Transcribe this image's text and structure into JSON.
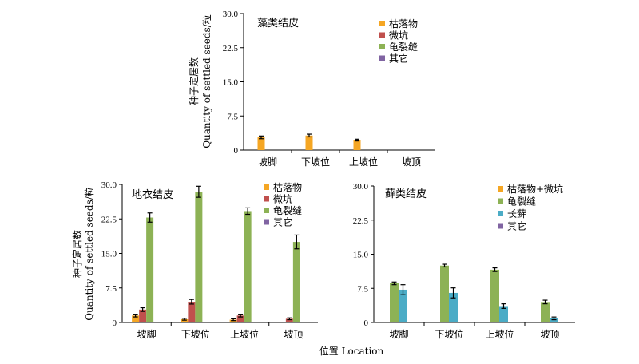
{
  "colors": {
    "枯落物": "#F5A623",
    "微坑": "#C0504D",
    "龟裂缝": "#8DB255",
    "其它": "#8064A2",
    "枯落物+微坑": "#F5A623",
    "长藓": "#4BACC6"
  },
  "y_label_cn": "种子定居数",
  "y_label_en": "Quantity of settled seeds/粒",
  "x_label": "位置  Location",
  "chart_data": [
    {
      "type": "bar",
      "title": "藻类结皮",
      "categories": [
        "坡脚",
        "下坡位",
        "上坡位",
        "坡顶"
      ],
      "ylim": [
        0,
        30
      ],
      "yticks": [
        "0",
        "7.5",
        "15.0",
        "22.5",
        "30.0"
      ],
      "legend": "top-right",
      "series": [
        {
          "name": "枯落物",
          "values": [
            2.8,
            3.2,
            2.2,
            0
          ],
          "errors": [
            0.3,
            0.3,
            0.2,
            0
          ]
        },
        {
          "name": "微坑",
          "values": [
            0,
            0,
            0,
            0
          ],
          "errors": [
            0,
            0,
            0,
            0
          ]
        },
        {
          "name": "龟裂缝",
          "values": [
            0,
            0,
            0,
            0
          ],
          "errors": [
            0,
            0,
            0,
            0
          ]
        },
        {
          "name": "其它",
          "values": [
            0,
            0,
            0,
            0
          ],
          "errors": [
            0,
            0,
            0,
            0
          ]
        }
      ]
    },
    {
      "type": "bar",
      "title": "地衣结皮",
      "categories": [
        "坡脚",
        "下坡位",
        "上坡位",
        "坡顶"
      ],
      "ylim": [
        0,
        30
      ],
      "yticks": [
        "0",
        "7.5",
        "15.0",
        "22.5",
        "30.0"
      ],
      "legend": "top-right",
      "series": [
        {
          "name": "枯落物",
          "values": [
            1.5,
            0.7,
            0.6,
            0
          ],
          "errors": [
            0.3,
            0.2,
            0.2,
            0
          ]
        },
        {
          "name": "微坑",
          "values": [
            2.8,
            4.5,
            1.5,
            0.8
          ],
          "errors": [
            0.4,
            0.5,
            0.3,
            0.2
          ]
        },
        {
          "name": "龟裂缝",
          "values": [
            22.8,
            28.4,
            24.2,
            17.5
          ],
          "errors": [
            1.0,
            1.2,
            0.7,
            1.5
          ]
        },
        {
          "name": "其它",
          "values": [
            0,
            0,
            0,
            0
          ],
          "errors": [
            0,
            0,
            0,
            0
          ]
        }
      ]
    },
    {
      "type": "bar",
      "title": "藓类结皮",
      "categories": [
        "坡脚",
        "下坡位",
        "上坡位",
        "坡顶"
      ],
      "ylim": [
        0,
        30
      ],
      "yticks": [
        "0",
        "7.5",
        "15.0",
        "22.5",
        "30.0"
      ],
      "legend": "top-right",
      "series": [
        {
          "name": "枯落物+微坑",
          "values": [
            0,
            0,
            0,
            0
          ],
          "errors": [
            0,
            0,
            0,
            0
          ]
        },
        {
          "name": "龟裂缝",
          "values": [
            8.6,
            12.5,
            11.6,
            4.5
          ],
          "errors": [
            0.3,
            0.3,
            0.4,
            0.4
          ]
        },
        {
          "name": "长藓",
          "values": [
            7.2,
            6.5,
            3.6,
            0.9
          ],
          "errors": [
            1.1,
            1.1,
            0.5,
            0.3
          ]
        },
        {
          "name": "其它",
          "values": [
            0,
            0,
            0,
            0
          ],
          "errors": [
            0,
            0,
            0,
            0
          ]
        }
      ]
    }
  ]
}
